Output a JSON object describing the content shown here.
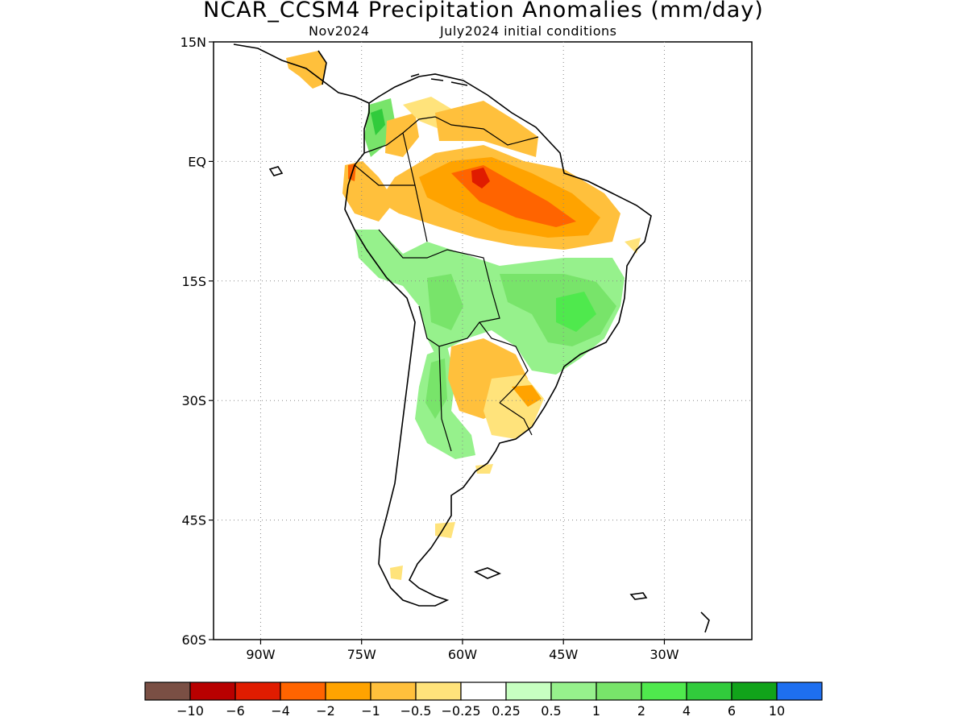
{
  "title": "NCAR_CCSM4 Precipitation Anomalies (mm/day)",
  "subtitle_left": "Nov2024",
  "subtitle_right": "July2024 initial conditions",
  "map": {
    "lon_range": [
      -97,
      -17
    ],
    "lat_range": [
      -60,
      15
    ],
    "lat_labels": [
      {
        "lat": 15,
        "text": "15N"
      },
      {
        "lat": 0,
        "text": "EQ"
      },
      {
        "lat": -15,
        "text": "15S"
      },
      {
        "lat": -30,
        "text": "30S"
      },
      {
        "lat": -45,
        "text": "45S"
      },
      {
        "lat": -60,
        "text": "60S"
      }
    ],
    "lon_labels": [
      {
        "lon": -90,
        "text": "90W"
      },
      {
        "lon": -75,
        "text": "75W"
      },
      {
        "lon": -60,
        "text": "60W"
      },
      {
        "lon": -45,
        "text": "45W"
      },
      {
        "lon": -30,
        "text": "30W"
      }
    ],
    "grid": true
  },
  "colorbar": {
    "colors": [
      "#7a4f44",
      "#b80000",
      "#e01c00",
      "#ff6400",
      "#ffa300",
      "#ffc03c",
      "#ffe37b",
      "#ffffff",
      "#c7ffc1",
      "#96f18c",
      "#78e46a",
      "#4fe94d",
      "#31cb3c",
      "#11a31a",
      "#1e6ff0"
    ],
    "labels": [
      "−10",
      "−6",
      "−4",
      "−2",
      "−1",
      "−0.5",
      "−0.25",
      "0.25",
      "0.5",
      "1",
      "2",
      "4",
      "6",
      "10"
    ]
  }
}
